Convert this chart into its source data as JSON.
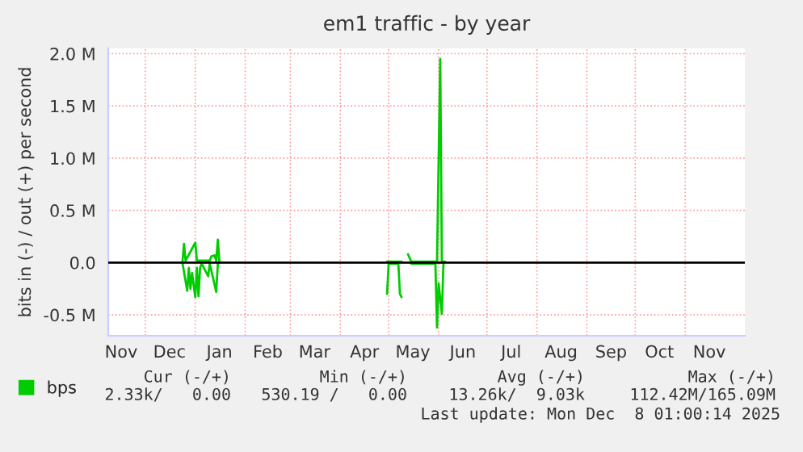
{
  "chart_data": {
    "type": "line",
    "title": "em1 traffic - by year",
    "ylabel": "bits in (-) / out (+) per second",
    "series": [
      {
        "name": "bps",
        "color": "#00cc00",
        "x": [
          "2024-12-24",
          "2024-12-25",
          "2024-12-26",
          "2025-01-01",
          "2025-01-02",
          "2025-01-10",
          "2025-01-11",
          "2025-01-13",
          "2025-01-14",
          "2025-01-15",
          "2025-01-16",
          "2025-02-01",
          "2025-04-30",
          "2025-05-09",
          "2025-05-11",
          "2025-05-13",
          "2025-05-15",
          "2025-05-31",
          "2025-06-02",
          "2025-06-03",
          "2025-06-05",
          "2024-12-24",
          "2024-12-27",
          "2024-12-28",
          "2024-12-29",
          "2024-12-30",
          "2025-01-01",
          "2025-01-02",
          "2025-01-03",
          "2025-01-04",
          "2025-01-05",
          "2025-01-09",
          "2025-01-10",
          "2025-01-14",
          "2025-01-15",
          "2025-01-16",
          "2025-02-01",
          "2025-04-30",
          "2025-05-01",
          "2025-05-07",
          "2025-05-08",
          "2025-05-09",
          "2025-05-11",
          "2025-05-15",
          "2025-05-30",
          "2025-05-31",
          "2025-06-01",
          "2025-06-03",
          "2025-06-04"
        ],
        "values": [
          0,
          0.18,
          0.02,
          0.19,
          0.02,
          0.02,
          0.06,
          0.07,
          0.02,
          0.22,
          0,
          null,
          0.01,
          0.01,
          null,
          0.08,
          0.01,
          0.01,
          1.95,
          0.01,
          0.01,
          0,
          -0.27,
          -0.05,
          -0.25,
          -0.1,
          -0.33,
          -0.05,
          -0.32,
          -0.05,
          -0.01,
          -0.13,
          -0.01,
          -0.28,
          -0.01,
          0,
          null,
          -0.3,
          -0.01,
          -0.01,
          -0.3,
          -0.33,
          null,
          -0.01,
          -0.01,
          -0.62,
          -0.2,
          -0.49,
          -0.01
        ]
      }
    ],
    "xlim": [
      "2024-11-08",
      "2025-12-08"
    ],
    "xticks": [
      {
        "value": "2024-11-16",
        "label": "Nov"
      },
      {
        "value": "2024-12-01",
        "label": null
      },
      {
        "value": "2024-12-16",
        "label": "Dec"
      },
      {
        "value": "2025-01-01",
        "label": null
      },
      {
        "value": "2025-01-16",
        "label": "Jan"
      },
      {
        "value": "2025-02-01",
        "label": null
      },
      {
        "value": "2025-02-15",
        "label": "Feb"
      },
      {
        "value": "2025-03-01",
        "label": null
      },
      {
        "value": "2025-03-16",
        "label": "Mar"
      },
      {
        "value": "2025-04-01",
        "label": null
      },
      {
        "value": "2025-04-16",
        "label": "Apr"
      },
      {
        "value": "2025-05-01",
        "label": null
      },
      {
        "value": "2025-05-16",
        "label": "May"
      },
      {
        "value": "2025-06-01",
        "label": null
      },
      {
        "value": "2025-06-16",
        "label": "Jun"
      },
      {
        "value": "2025-07-01",
        "label": null
      },
      {
        "value": "2025-07-16",
        "label": "Jul"
      },
      {
        "value": "2025-08-01",
        "label": null
      },
      {
        "value": "2025-08-16",
        "label": "Aug"
      },
      {
        "value": "2025-09-01",
        "label": null
      },
      {
        "value": "2025-09-16",
        "label": "Sep"
      },
      {
        "value": "2025-10-01",
        "label": null
      },
      {
        "value": "2025-10-16",
        "label": "Oct"
      },
      {
        "value": "2025-11-01",
        "label": null
      },
      {
        "value": "2025-11-16",
        "label": "Nov"
      }
    ],
    "ylim": [
      -0.7,
      2.05
    ],
    "yticks": [
      {
        "value": -0.5,
        "label": "-0.5 M"
      },
      {
        "value": 0,
        "label": "0.0"
      },
      {
        "value": 0.5,
        "label": "0.5 M"
      },
      {
        "value": 1.0,
        "label": "1.0 M"
      },
      {
        "value": 1.5,
        "label": "1.5 M"
      },
      {
        "value": 2.0,
        "label": "2.0 M"
      }
    ],
    "grid": true,
    "legend": "bottom left",
    "ref_lines": [
      {
        "axis": "y",
        "value": 0,
        "color": "#000000"
      }
    ],
    "annotations": [
      "Cur (-/+)",
      "Min (-/+)",
      "Avg (-/+)",
      "Max (-/+)",
      "2.33k/   0.00",
      "530.19 /   0.00",
      "13.26k/  9.03k",
      "112.42M/165.09M",
      "Last update: Mon Dec  8 01:00:14 2025"
    ]
  }
}
